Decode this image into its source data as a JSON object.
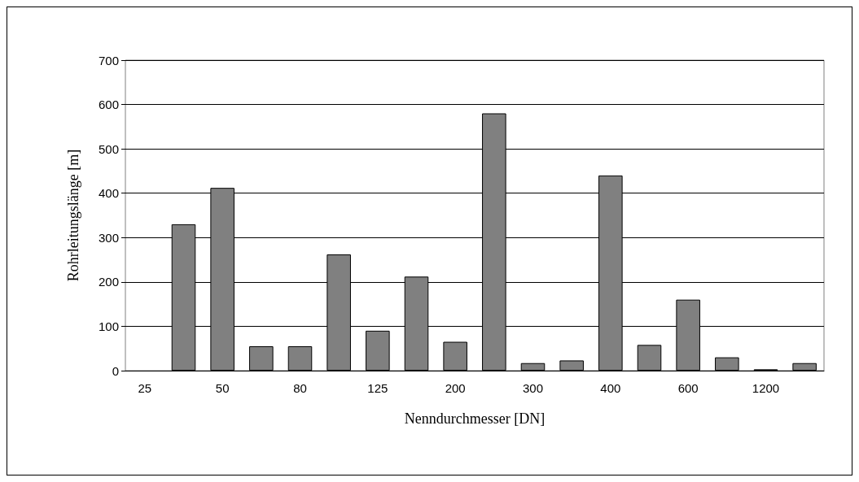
{
  "chart_data": {
    "type": "bar",
    "xlabel": "Nenndurchmesser [DN]",
    "ylabel": "Rohrleitungslänge [m]",
    "categories": [
      "25",
      null,
      "50",
      null,
      "80",
      null,
      "125",
      null,
      "200",
      null,
      "300",
      null,
      "400",
      null,
      "600",
      null,
      "1200",
      null
    ],
    "values": [
      null,
      330,
      412,
      55,
      55,
      262,
      90,
      212,
      65,
      580,
      17,
      23,
      440,
      58,
      160,
      30,
      3,
      17
    ],
    "color": "#808080",
    "ylim": [
      0,
      700
    ],
    "yticks": [
      0,
      100,
      200,
      300,
      400,
      500,
      600,
      700
    ],
    "grid": "y"
  }
}
